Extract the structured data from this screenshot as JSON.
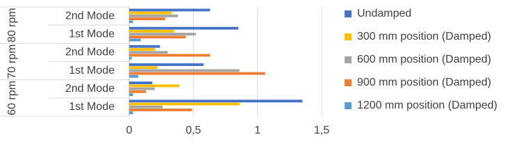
{
  "chart_data": {
    "type": "bar",
    "orientation": "horizontal",
    "category_groups": [
      "80 rpm",
      "70 rpm",
      "60 rpm"
    ],
    "categories": [
      "2nd Mode",
      "1st Mode",
      "2nd Mode",
      "1st Mode",
      "2nd Mode",
      "1st Mode"
    ],
    "series": [
      {
        "name": "Undamped",
        "color": "#4472c4",
        "values": [
          0.63,
          0.85,
          0.24,
          0.58,
          0.18,
          1.35
        ]
      },
      {
        "name": "300 mm position (Damped)",
        "color": "#ffc000",
        "values": [
          0.33,
          0.35,
          0.2,
          0.22,
          0.39,
          0.86
        ]
      },
      {
        "name": "600 mm position (Damped)",
        "color": "#a5a5a5",
        "values": [
          0.38,
          0.52,
          0.3,
          0.86,
          0.2,
          0.26
        ]
      },
      {
        "name": "900 mm position (Damped)",
        "color": "#ed7d31",
        "values": [
          0.28,
          0.44,
          0.63,
          1.06,
          0.13,
          0.49
        ]
      },
      {
        "name": "1200 mm position (Damped)",
        "color": "#5b9bd5",
        "values": [
          0.03,
          0.09,
          0.02,
          0.07,
          0.03,
          0.03
        ]
      }
    ],
    "xlim": [
      0,
      1.5
    ],
    "xticks": [
      0,
      {
        "value": 0.5,
        "label": "0,5"
      },
      1,
      {
        "value": 1.5,
        "label": "1,5"
      }
    ],
    "grid": true,
    "legend": "right"
  }
}
